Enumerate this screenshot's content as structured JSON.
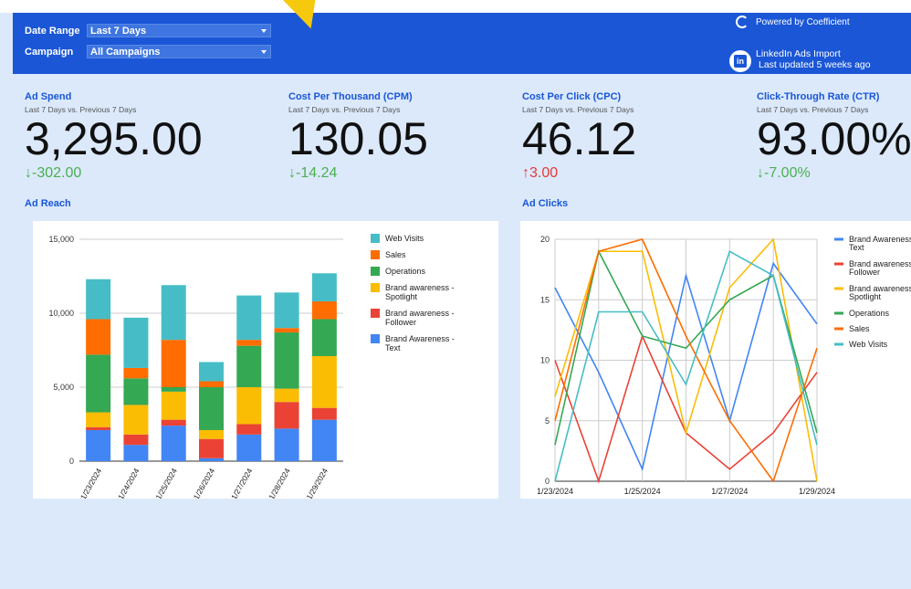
{
  "filters": {
    "date_range_label": "Date Range",
    "date_range_value": "Last 7 Days",
    "campaign_label": "Campaign",
    "campaign_value": "All Campaigns"
  },
  "brand": {
    "powered_by": "Powered by Coefficient",
    "import_title": "LinkedIn Ads Import",
    "last_updated": "Last updated 5 weeks ago"
  },
  "kpis": [
    {
      "title": "Ad Spend",
      "subtitle": "Last 7 Days vs. Previous 7 Days",
      "value": "3,295.00",
      "delta": "-302.00",
      "direction": "down"
    },
    {
      "title": "Cost Per Thousand (CPM)",
      "subtitle": "Last 7 Days vs. Previous 7 Days",
      "value": "130.05",
      "delta": "-14.24",
      "direction": "down"
    },
    {
      "title": "Cost Per Click (CPC)",
      "subtitle": "Last 7 Days vs. Previous 7 Days",
      "value": "46.12",
      "delta": "3.00",
      "direction": "up"
    },
    {
      "title": "Click-Through Rate (CTR)",
      "subtitle": "Last 7 Days vs. Previous 7 Days",
      "value": "93.00%",
      "delta": "-7.00%",
      "direction": "down"
    }
  ],
  "sections": {
    "reach": "Ad Reach",
    "clicks": "Ad Clicks"
  },
  "chart_data": [
    {
      "type": "bar",
      "stacked": true,
      "categories": [
        "1/23/2024",
        "1/24/2024",
        "1/25/2024",
        "1/26/2024",
        "1/27/2024",
        "1/28/2024",
        "1/29/2024"
      ],
      "ylim": [
        0,
        15000
      ],
      "yticks": [
        "0",
        "5,000",
        "10,000",
        "15,000"
      ],
      "ytick_values": [
        0,
        5000,
        10000,
        15000
      ],
      "grid": true,
      "legend_position": "right",
      "series": [
        {
          "name": "Brand Awareness - Text",
          "color": "#4285f4",
          "values": [
            2100,
            1100,
            2400,
            200,
            1800,
            2200,
            2800
          ]
        },
        {
          "name": "Brand awareness - Follower",
          "color": "#ea4335",
          "values": [
            200,
            700,
            400,
            1300,
            700,
            1800,
            800
          ]
        },
        {
          "name": "Brand awareness - Spotlight",
          "color": "#fbbc04",
          "values": [
            1000,
            2000,
            1900,
            600,
            2500,
            900,
            3500
          ]
        },
        {
          "name": "Operations",
          "color": "#34a853",
          "values": [
            3900,
            1800,
            300,
            2900,
            2800,
            3800,
            2500
          ]
        },
        {
          "name": "Sales",
          "color": "#ff6d01",
          "values": [
            2400,
            700,
            3200,
            400,
            400,
            300,
            1200
          ]
        },
        {
          "name": "Web Visits",
          "color": "#46bdc6",
          "values": [
            2700,
            3400,
            3700,
            1300,
            3000,
            2400,
            1900
          ]
        }
      ]
    },
    {
      "type": "line",
      "x": [
        "1/23/2024",
        "1/24/2024",
        "1/25/2024",
        "1/26/2024",
        "1/27/2024",
        "1/28/2024",
        "1/29/2024"
      ],
      "xticks": [
        "1/23/2024",
        "1/25/2024",
        "1/27/2024",
        "1/29/2024"
      ],
      "ylim": [
        0,
        20
      ],
      "yticks": [
        "0",
        "5",
        "10",
        "15",
        "20"
      ],
      "ytick_values": [
        0,
        5,
        10,
        15,
        20
      ],
      "grid": true,
      "legend_position": "right",
      "series": [
        {
          "name": "Brand Awareness - Text",
          "color": "#4285f4",
          "values": [
            16,
            9,
            1,
            17,
            5,
            18,
            13
          ]
        },
        {
          "name": "Brand awareness - Follower",
          "color": "#ea4335",
          "values": [
            10,
            0,
            12,
            4,
            1,
            4,
            9
          ]
        },
        {
          "name": "Brand awareness - Spotlight",
          "color": "#fbbc04",
          "values": [
            7,
            19,
            19,
            4,
            16,
            20,
            0
          ]
        },
        {
          "name": "Operations",
          "color": "#34a853",
          "values": [
            3,
            19,
            12,
            11,
            15,
            17,
            4
          ]
        },
        {
          "name": "Sales",
          "color": "#ff6d01",
          "values": [
            5,
            19,
            20,
            12,
            5,
            0,
            11
          ]
        },
        {
          "name": "Web Visits",
          "color": "#46bdc6",
          "values": [
            0,
            14,
            14,
            8,
            19,
            17,
            3
          ]
        }
      ]
    }
  ]
}
